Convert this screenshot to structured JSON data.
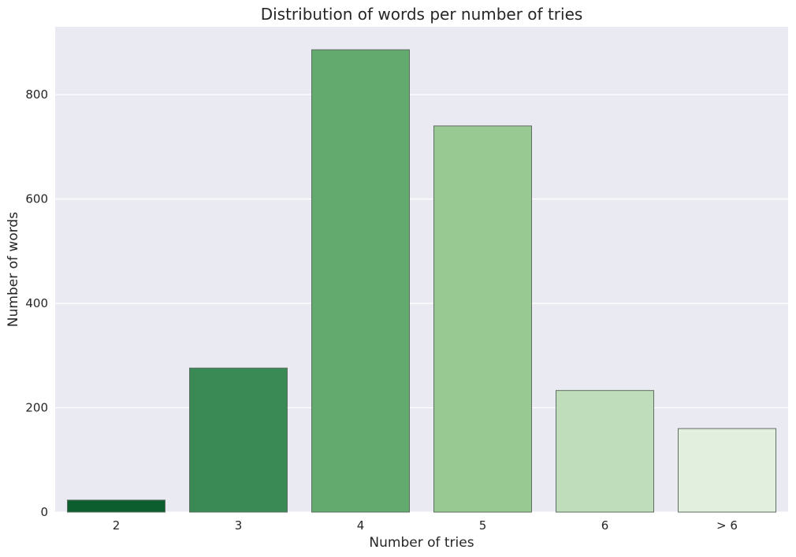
{
  "chart_data": {
    "type": "bar",
    "title": "Distribution of words per number of tries",
    "xlabel": "Number of tries",
    "ylabel": "Number of words",
    "categories": [
      "2",
      "3",
      "4",
      "5",
      "6",
      "> 6"
    ],
    "values": [
      23,
      276,
      886,
      740,
      233,
      160
    ],
    "ylim": [
      0,
      930
    ],
    "yticks": [
      0,
      200,
      400,
      600,
      800
    ],
    "grid": true,
    "colors": [
      "#0d5e2e",
      "#3a8a55",
      "#63aa6e",
      "#99c993",
      "#c0ddbb",
      "#e2efdf"
    ],
    "edge_color": "#5f6e62",
    "background": "#eaeaf2"
  }
}
